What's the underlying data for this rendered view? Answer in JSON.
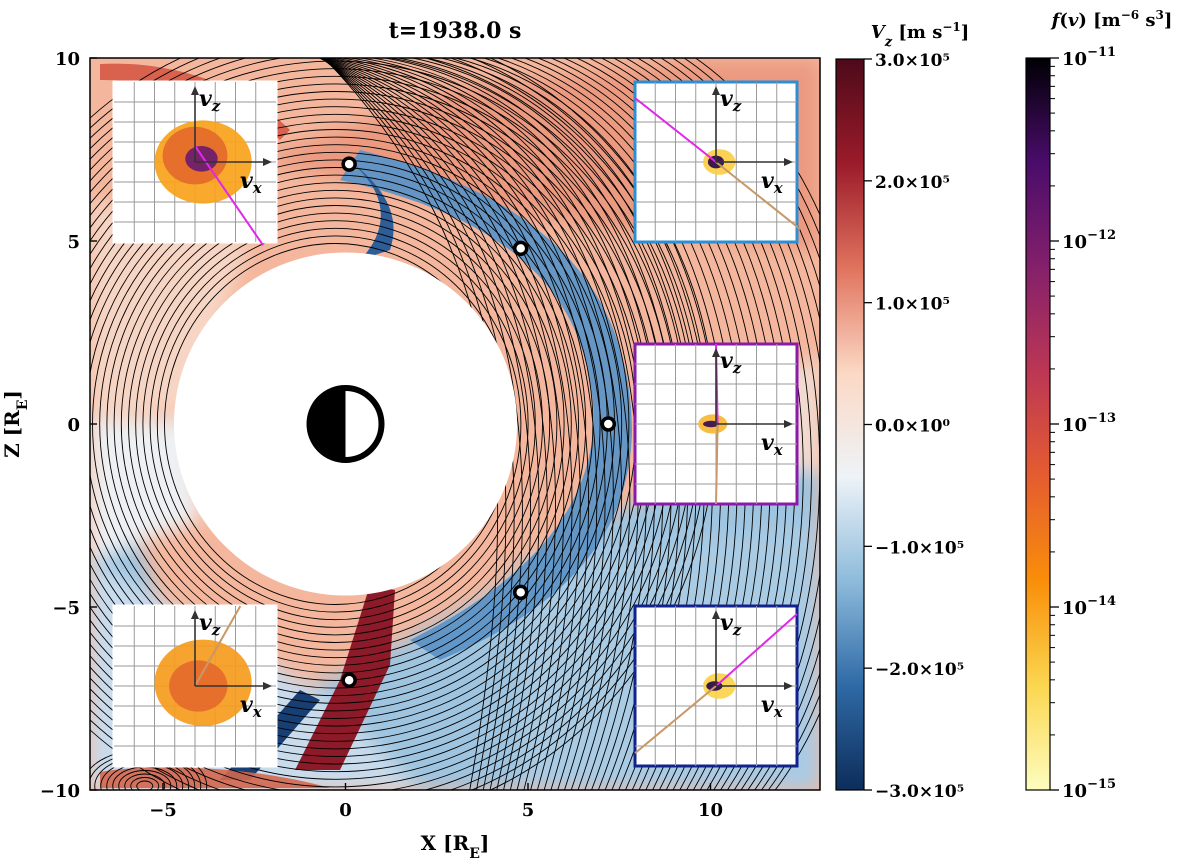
{
  "chart_data": {
    "type": "heatmap",
    "title": "t=1938.0 s",
    "xlabel": "X [R_E]",
    "ylabel": "Z [R_E]",
    "xlim": [
      -7,
      13
    ],
    "ylim": [
      -10,
      10
    ],
    "x_ticks": [
      {
        "value": -5,
        "label": "−5"
      },
      {
        "value": 0,
        "label": "0"
      },
      {
        "value": 5,
        "label": "5"
      },
      {
        "value": 10,
        "label": "10"
      }
    ],
    "y_ticks": [
      {
        "value": 10,
        "label": "10"
      },
      {
        "value": 5,
        "label": "5"
      },
      {
        "value": 0,
        "label": "0"
      },
      {
        "value": -5,
        "label": "−5"
      },
      {
        "value": -10,
        "label": "−10"
      }
    ],
    "inner_boundary_radius": 4.7,
    "earth_symbol": {
      "x": 0,
      "z": 0
    },
    "vz_colorbar": {
      "title": "V_z [m s⁻¹]",
      "range": [
        -300000,
        300000
      ],
      "colors": [
        "#0d2d5a",
        "#2f6aa6",
        "#8dbbdb",
        "#eef3f8",
        "#fbd8c4",
        "#e0735e",
        "#9b1b2a",
        "#4d0a1a"
      ],
      "ticks": [
        {
          "value": 300000,
          "label": "3.0×10⁵"
        },
        {
          "value": 200000,
          "label": "2.0×10⁵"
        },
        {
          "value": 100000,
          "label": "1.0×10⁵"
        },
        {
          "value": 0,
          "label": "0.0×10⁰"
        },
        {
          "value": -100000,
          "label": "−1.0×10⁵"
        },
        {
          "value": -200000,
          "label": "−2.0×10⁵"
        },
        {
          "value": -300000,
          "label": "−3.0×10⁵"
        }
      ]
    },
    "fv_colorbar": {
      "title": "f(v) [m⁻⁶ s³]",
      "scale": "log",
      "range": [
        1e-15,
        1e-11
      ],
      "colors": [
        "#fcfdbf",
        "#fbd650",
        "#f98e09",
        "#e55c30",
        "#bc3754",
        "#84206b",
        "#4a0c6b",
        "#000004"
      ],
      "ticks": [
        {
          "exp": -11,
          "label_base": "10",
          "label_exp": "−11"
        },
        {
          "exp": -12,
          "label_base": "10",
          "label_exp": "−12"
        },
        {
          "exp": -13,
          "label_base": "10",
          "label_exp": "−13"
        },
        {
          "exp": -14,
          "label_base": "10",
          "label_exp": "−14"
        },
        {
          "exp": -15,
          "label_base": "10",
          "label_exp": "−15"
        }
      ]
    },
    "vdf_points": [
      {
        "x": 0.1,
        "z": 7.1
      },
      {
        "x": 4.8,
        "z": 4.8
      },
      {
        "x": 7.2,
        "z": 0.0
      },
      {
        "x": 4.8,
        "z": -4.6
      },
      {
        "x": 0.1,
        "z": -7.0
      }
    ],
    "vdf_insets": [
      {
        "position": "top-left",
        "frame_color": "#ffffff",
        "xlabel": "v_x",
        "ylabel": "v_z"
      },
      {
        "position": "top-right",
        "frame_color": "#2b8fd6",
        "xlabel": "v_x",
        "ylabel": "v_z"
      },
      {
        "position": "middle-right",
        "frame_color": "#8a1aa8",
        "xlabel": "v_x",
        "ylabel": "v_z"
      },
      {
        "position": "bottom-left",
        "frame_color": "#ffffff",
        "xlabel": "v_x",
        "ylabel": "v_z"
      },
      {
        "position": "bottom-right",
        "frame_color": "#12238f",
        "xlabel": "v_x",
        "ylabel": "v_z"
      }
    ]
  }
}
